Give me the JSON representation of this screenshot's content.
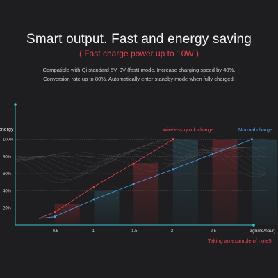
{
  "header": {
    "title": "Smart output. Fast and energy saving",
    "subtitle": "( Fast charge power up to 10W )",
    "description_line1": "Compatible with  Qi standard 5V, 9V (fast) mode. Increase charging speed by  40%.",
    "description_line2": "Conversion rate up to 80%. Automatically enter standby mode when fully charged."
  },
  "chart_data": {
    "type": "line",
    "ylabel": "energy",
    "xlabel": "(Time/hour)",
    "annotation": "Taking an example of note5",
    "x_ticks": [
      "0.5",
      "1",
      "1.5",
      "2",
      "2.5",
      "3"
    ],
    "y_ticks": [
      "20%",
      "40%",
      "60%",
      "80%",
      "100%"
    ],
    "xlim": [
      0,
      3.2
    ],
    "ylim": [
      0,
      120
    ],
    "series": [
      {
        "name": "Wireless quick charge",
        "color": "#e8434f",
        "x": [
          0.5,
          1,
          1.5,
          2
        ],
        "y": [
          15,
          45,
          72,
          100
        ]
      },
      {
        "name": "Normal charge",
        "color": "#4a9ee6",
        "x": [
          0.5,
          1,
          1.5,
          2,
          2.5,
          3
        ],
        "y": [
          10,
          30,
          48,
          65,
          83,
          100
        ]
      }
    ],
    "background_bars": {
      "x": [
        0.5,
        1,
        1.5,
        2,
        2.5,
        3
      ],
      "y": [
        25,
        40,
        72,
        100,
        100,
        100
      ]
    }
  }
}
